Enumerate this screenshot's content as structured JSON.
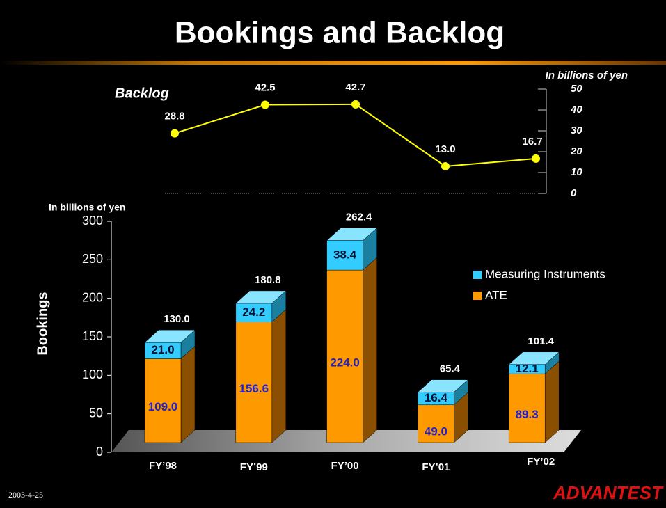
{
  "title": "Bookings and Backlog",
  "date": "2003-4-25",
  "logo": "ADVANTEST",
  "chart_data": [
    {
      "type": "line",
      "title": "Backlog",
      "unit_label": "In billions of yen",
      "values": [
        28.8,
        42.5,
        42.7,
        13.0,
        16.7
      ],
      "value_labels": [
        "28.8",
        "42.5",
        "42.7",
        "13.0",
        "16.7"
      ],
      "color": "#ffff00",
      "ylim": [
        0,
        50
      ],
      "yticks": [
        0,
        10,
        20,
        30,
        40,
        50
      ]
    },
    {
      "type": "bar",
      "stacked": true,
      "ylabel": "Bookings",
      "unit_label": "In billions of yen",
      "categories": [
        "FY’98",
        "FY’99",
        "FY’00",
        "FY’01",
        "FY’02"
      ],
      "series": [
        {
          "name": "ATE",
          "color": "#ff9900",
          "values": [
            109.0,
            156.6,
            224.0,
            49.0,
            89.3
          ],
          "value_labels": [
            "109.0",
            "156.6",
            "224.0",
            "49.0",
            "89.3"
          ]
        },
        {
          "name": "Measuring Instruments",
          "color": "#33ccff",
          "values": [
            21.0,
            24.2,
            38.4,
            16.4,
            12.1
          ],
          "value_labels": [
            "21.0",
            "24.2",
            "38.4",
            "16.4",
            "12.1"
          ]
        }
      ],
      "totals": [
        130.0,
        180.8,
        262.4,
        65.4,
        101.4
      ],
      "total_labels": [
        "130.0",
        "180.8",
        "262.4",
        "65.4",
        "101.4"
      ],
      "ylim": [
        0,
        300
      ],
      "yticks": [
        0,
        50,
        100,
        150,
        200,
        250,
        300
      ]
    }
  ]
}
